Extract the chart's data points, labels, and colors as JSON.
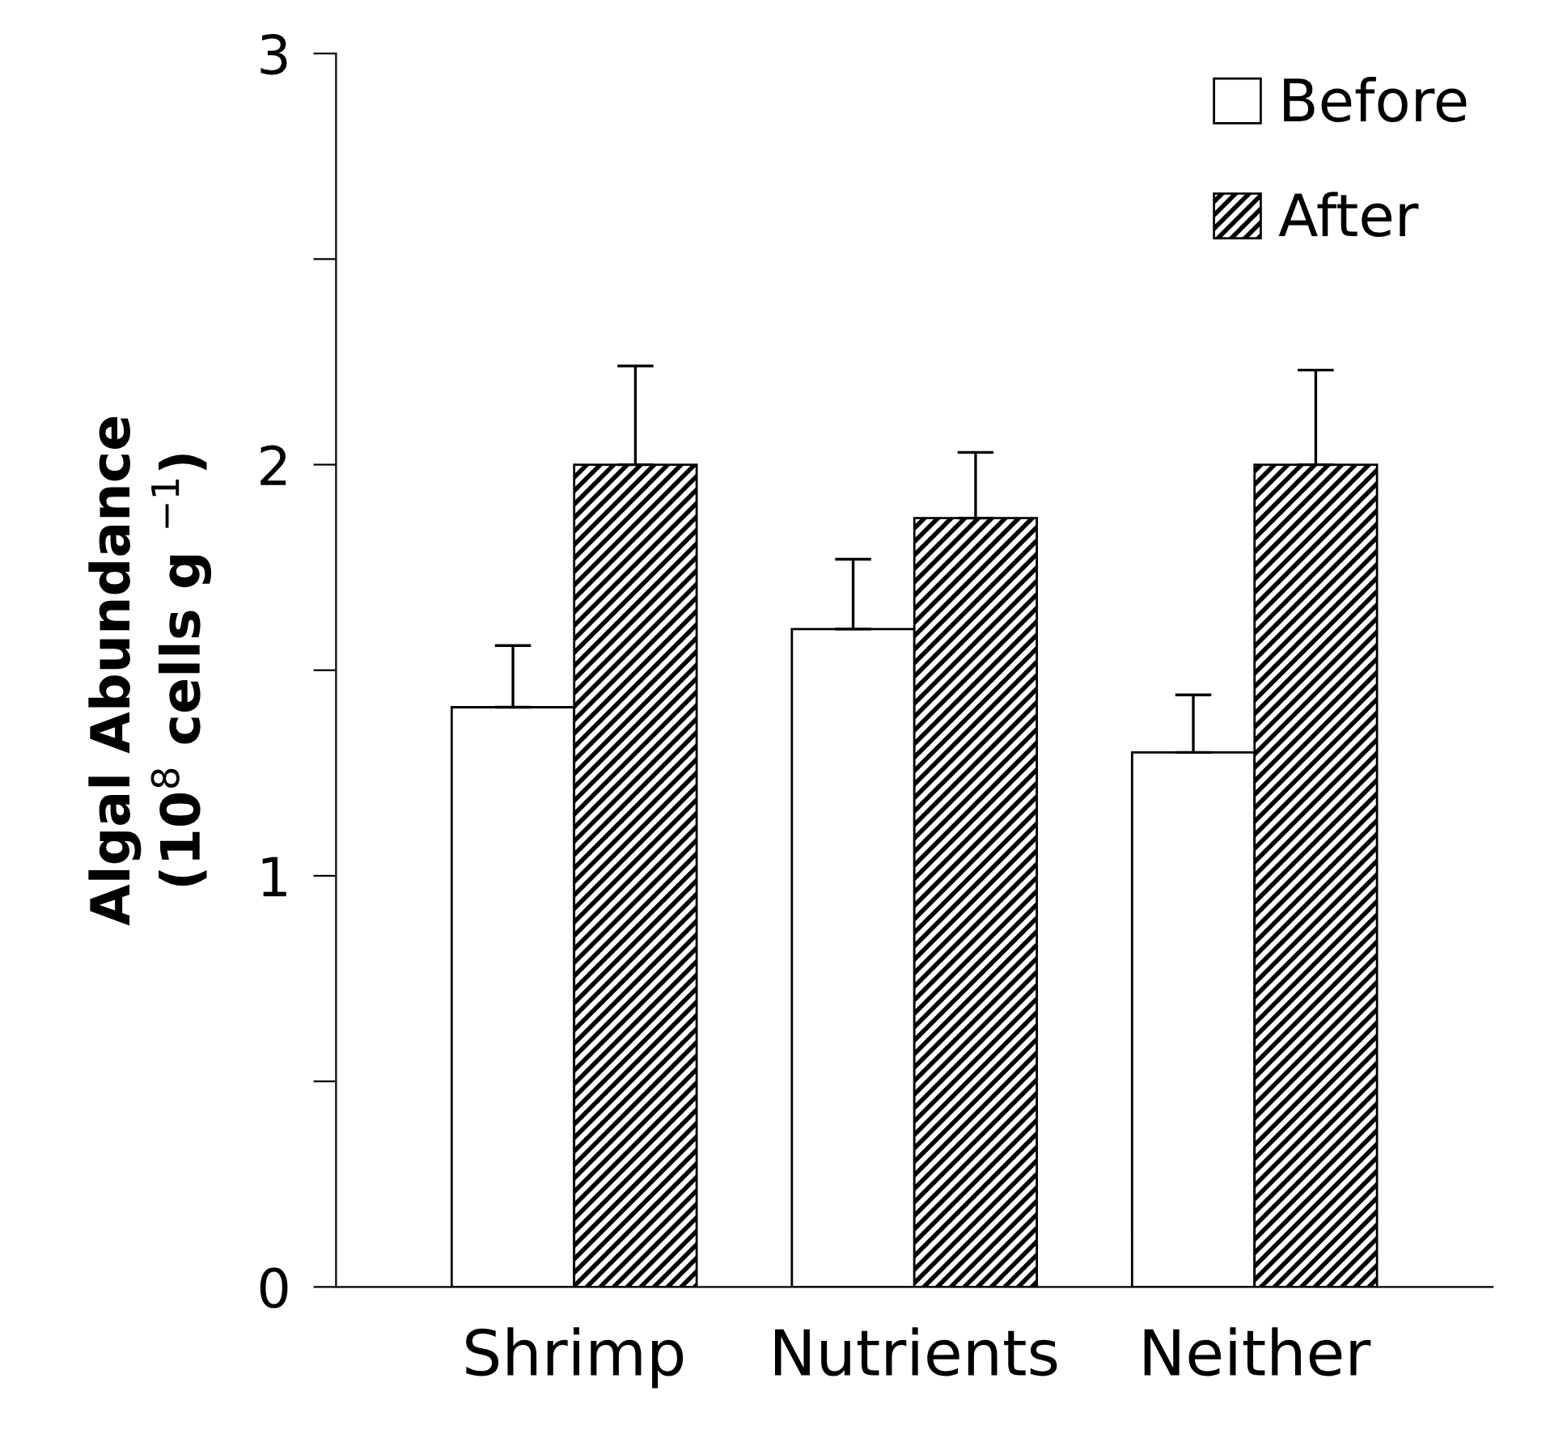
{
  "chart_data": {
    "type": "bar",
    "ylabel": "Algal Abundance\n(10$^{8}$ cells g $^{−1}$)",
    "categories": [
      "Shrimp",
      "Nutrients",
      "Neither"
    ],
    "series": [
      {
        "name": "Before",
        "color": "#ffffff",
        "values": [
          1.41,
          1.6,
          1.3
        ],
        "errors": [
          [
            1.41,
            1.56
          ],
          [
            1.6,
            1.77
          ],
          [
            1.3,
            1.44
          ]
        ]
      },
      {
        "name": "After",
        "color": "#000000",
        "values": [
          2.0,
          1.87,
          2.0
        ],
        "errors": [
          [
            2.0,
            2.24
          ],
          [
            1.87,
            2.03
          ],
          [
            2.0,
            2.23
          ]
        ]
      }
    ],
    "ylim": [
      0,
      3
    ],
    "yticks": [
      0,
      {
        "value": 0.5,
        "label": null
      },
      1,
      {
        "value": 1.5,
        "label": null
      },
      2,
      {
        "value": 2.5,
        "label": null
      },
      3
    ],
    "legend": "top right"
  }
}
